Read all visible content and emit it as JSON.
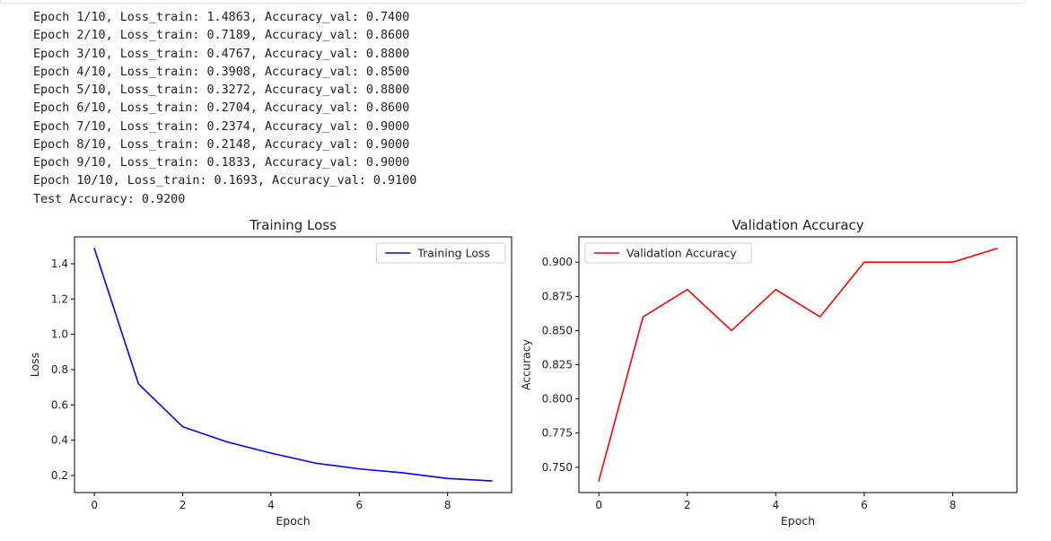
{
  "log": {
    "lines": [
      "Epoch 1/10, Loss_train: 1.4863, Accuracy_val: 0.7400",
      "Epoch 2/10, Loss_train: 0.7189, Accuracy_val: 0.8600",
      "Epoch 3/10, Loss_train: 0.4767, Accuracy_val: 0.8800",
      "Epoch 4/10, Loss_train: 0.3908, Accuracy_val: 0.8500",
      "Epoch 5/10, Loss_train: 0.3272, Accuracy_val: 0.8800",
      "Epoch 6/10, Loss_train: 0.2704, Accuracy_val: 0.8600",
      "Epoch 7/10, Loss_train: 0.2374, Accuracy_val: 0.9000",
      "Epoch 8/10, Loss_train: 0.2148, Accuracy_val: 0.9000",
      "Epoch 9/10, Loss_train: 0.1833, Accuracy_val: 0.9000",
      "Epoch 10/10, Loss_train: 0.1693, Accuracy_val: 0.9100",
      "Test Accuracy: 0.9200"
    ]
  },
  "chart_data": [
    {
      "type": "line",
      "title": "Training Loss",
      "xlabel": "Epoch",
      "ylabel": "Loss",
      "x": [
        0,
        1,
        2,
        3,
        4,
        5,
        6,
        7,
        8,
        9
      ],
      "series": [
        {
          "name": "Training Loss",
          "color": "#0000ff",
          "values": [
            1.4863,
            0.7189,
            0.4767,
            0.3908,
            0.3272,
            0.2704,
            0.2374,
            0.2148,
            0.1833,
            0.1693
          ]
        }
      ],
      "xlim": [
        -0.45,
        9.45
      ],
      "ylim": [
        0.1034,
        1.5522
      ],
      "xticks": [
        0,
        2,
        4,
        6,
        8
      ],
      "xtick_labels": [
        "0",
        "2",
        "4",
        "6",
        "8"
      ],
      "yticks": [
        0.2,
        0.4,
        0.6,
        0.8,
        1.0,
        1.2,
        1.4
      ],
      "ytick_labels": [
        "0.2",
        "0.4",
        "0.6",
        "0.8",
        "1.0",
        "1.2",
        "1.4"
      ],
      "legend_position": "upper right",
      "grid": false
    },
    {
      "type": "line",
      "title": "Validation Accuracy",
      "xlabel": "Epoch",
      "ylabel": "Accuracy",
      "x": [
        0,
        1,
        2,
        3,
        4,
        5,
        6,
        7,
        8,
        9
      ],
      "series": [
        {
          "name": "Validation Accuracy",
          "color": "#ff0000",
          "values": [
            0.74,
            0.86,
            0.88,
            0.85,
            0.88,
            0.86,
            0.9,
            0.9,
            0.9,
            0.91
          ]
        }
      ],
      "xlim": [
        -0.45,
        9.45
      ],
      "ylim": [
        0.7315,
        0.9185
      ],
      "xticks": [
        0,
        2,
        4,
        6,
        8
      ],
      "xtick_labels": [
        "0",
        "2",
        "4",
        "6",
        "8"
      ],
      "yticks": [
        0.75,
        0.775,
        0.8,
        0.825,
        0.85,
        0.875,
        0.9
      ],
      "ytick_labels": [
        "0.750",
        "0.775",
        "0.800",
        "0.825",
        "0.850",
        "0.875",
        "0.900"
      ],
      "legend_position": "upper left",
      "grid": false
    }
  ]
}
